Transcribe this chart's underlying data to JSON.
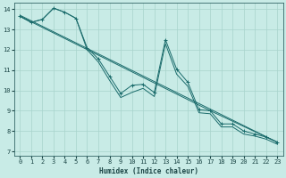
{
  "xlabel": "Humidex (Indice chaleur)",
  "xlim": [
    -0.5,
    23.5
  ],
  "ylim": [
    6.8,
    14.3
  ],
  "xticks": [
    0,
    1,
    2,
    3,
    4,
    5,
    6,
    7,
    8,
    9,
    10,
    11,
    12,
    13,
    14,
    15,
    16,
    17,
    18,
    19,
    20,
    21,
    22,
    23
  ],
  "yticks": [
    7,
    8,
    9,
    10,
    11,
    12,
    13,
    14
  ],
  "bg_color": "#c8ebe6",
  "grid_color": "#a8d4cc",
  "line_color": "#1a6b6b",
  "lines": [
    {
      "x": [
        0,
        1,
        2,
        3,
        4,
        5,
        6,
        7,
        8,
        9,
        10,
        11,
        12,
        13,
        14,
        15,
        16,
        17,
        18,
        19,
        20,
        21,
        22,
        23
      ],
      "y": [
        13.65,
        13.35,
        13.5,
        14.05,
        13.85,
        13.55,
        12.1,
        11.55,
        10.7,
        9.85,
        10.25,
        10.3,
        9.9,
        12.5,
        11.05,
        10.4,
        9.05,
        9.0,
        8.35,
        8.35,
        8.0,
        7.85,
        7.7,
        7.45
      ],
      "marker": true
    },
    {
      "x": [
        0,
        23
      ],
      "y": [
        13.7,
        7.45
      ],
      "marker": false
    },
    {
      "x": [
        0,
        17,
        23
      ],
      "y": [
        13.65,
        9.0,
        7.45
      ],
      "marker": false
    },
    {
      "x": [
        0,
        1,
        2,
        3,
        4,
        5,
        6,
        7,
        8,
        9,
        10,
        11,
        12,
        13,
        14,
        15,
        16,
        17,
        18,
        19,
        20,
        21,
        22,
        23
      ],
      "y": [
        13.65,
        13.35,
        13.5,
        14.05,
        13.85,
        13.55,
        12.0,
        11.4,
        10.5,
        9.65,
        9.9,
        10.1,
        9.7,
        12.3,
        10.8,
        10.2,
        8.9,
        8.85,
        8.2,
        8.2,
        7.85,
        7.75,
        7.6,
        7.35
      ],
      "marker": false
    }
  ]
}
